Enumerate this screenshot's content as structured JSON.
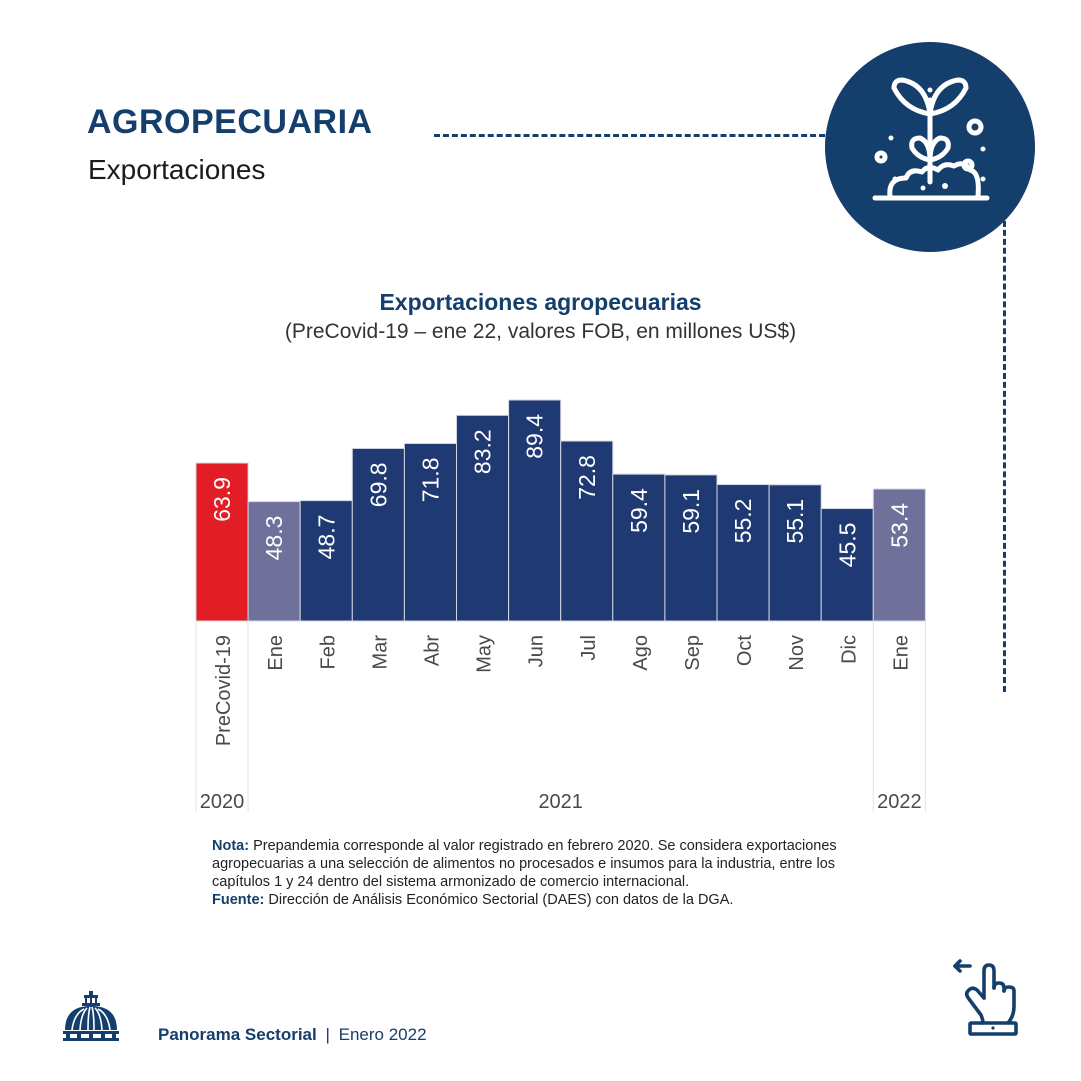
{
  "header": {
    "title": "AGROPECUARIA",
    "subtitle": "Exportaciones",
    "icon": "plant-sprout-icon"
  },
  "colors": {
    "brand": "#143e6b",
    "bar_main": "#1f3a72",
    "bar_highlight": "#70719b",
    "bar_precovid": "#e31d25"
  },
  "chart_data": {
    "type": "bar",
    "title": "Exportaciones agropecuarias",
    "subtitle": "(PreCovid-19 – ene 22, valores FOB, en millones US$)",
    "categories": [
      "PreCovid-19",
      "Ene",
      "Feb",
      "Mar",
      "Abr",
      "May",
      "Jun",
      "Jul",
      "Ago",
      "Sep",
      "Oct",
      "Nov",
      "Dic",
      "Ene"
    ],
    "values": [
      63.9,
      48.3,
      48.7,
      69.8,
      71.8,
      83.2,
      89.4,
      72.8,
      59.4,
      59.1,
      55.2,
      55.1,
      45.5,
      53.4
    ],
    "value_labels": [
      "63.9",
      "48.3",
      "48.7",
      "69.8",
      "71.8",
      "83.2",
      "89.4",
      "72.8",
      "59.4",
      "59.1",
      "55.2",
      "55.1",
      "45.5",
      "53.4"
    ],
    "bar_styles": [
      "precovid",
      "highlight",
      "main",
      "main",
      "main",
      "main",
      "main",
      "main",
      "main",
      "main",
      "main",
      "main",
      "main",
      "highlight"
    ],
    "year_groups": [
      {
        "label": "2020",
        "start": 0,
        "end": 0
      },
      {
        "label": "2021",
        "start": 1,
        "end": 12
      },
      {
        "label": "2022",
        "start": 13,
        "end": 13
      }
    ],
    "xlabel": "",
    "ylabel": "",
    "ylim": [
      0,
      89.4
    ],
    "grid": false,
    "legend": "none"
  },
  "notes": {
    "nota_label": "Nota:",
    "nota_line1": " Prepandemia corresponde al valor registrado en febrero 2020. Se considera exportaciones",
    "nota_line2": "agropecuarias a una selección de alimentos no procesados e insumos para la industria, entre los",
    "nota_line3": "capítulos 1 y 24 dentro del sistema armonizado de comercio internacional.",
    "fuente_label": "Fuente:",
    "fuente_text": " Dirección de Análisis Económico Sectorial (DAES) con datos de la DGA."
  },
  "footer": {
    "publication": "Panorama Sectorial",
    "separator": "|",
    "date": "Enero 2022",
    "logo": "dome-logo",
    "swipe_icon": "swipe-left-hand-icon"
  }
}
